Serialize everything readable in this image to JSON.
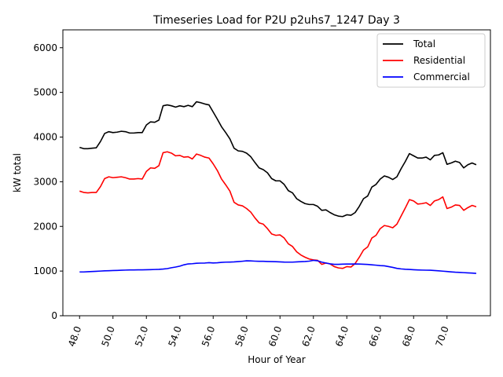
{
  "chart_data": {
    "type": "line",
    "title": "Timeseries Load for P2U p2uhs7_1247  Day 3",
    "xlabel": "Hour of Year",
    "ylabel": "kW total",
    "xlim": [
      47.0,
      72.6
    ],
    "ylim": [
      0,
      6400
    ],
    "x_ticks": [
      48,
      50,
      52,
      54,
      56,
      58,
      60,
      62,
      64,
      66,
      68,
      70
    ],
    "x_tick_labels": [
      "48.0",
      "50.0",
      "52.0",
      "54.0",
      "56.0",
      "58.0",
      "60.0",
      "62.0",
      "64.0",
      "66.0",
      "68.0",
      "70.0"
    ],
    "y_ticks": [
      0,
      1000,
      2000,
      3000,
      4000,
      5000,
      6000
    ],
    "y_tick_labels": [
      "0",
      "1000",
      "2000",
      "3000",
      "4000",
      "5000",
      "6000"
    ],
    "legend_position": "top-right",
    "series": [
      {
        "name": "Total",
        "color": "#000000",
        "x": [
          48.0,
          48.25,
          48.5,
          48.75,
          49.0,
          49.25,
          49.5,
          49.75,
          50.0,
          50.25,
          50.5,
          50.75,
          51.0,
          51.25,
          51.5,
          51.75,
          52.0,
          52.25,
          52.5,
          52.75,
          53.0,
          53.25,
          53.5,
          53.75,
          54.0,
          54.25,
          54.5,
          54.75,
          55.0,
          55.25,
          55.5,
          55.75,
          56.0,
          56.25,
          56.5,
          56.75,
          57.0,
          57.25,
          57.5,
          57.75,
          58.0,
          58.25,
          58.5,
          58.75,
          59.0,
          59.25,
          59.5,
          59.75,
          60.0,
          60.25,
          60.5,
          60.75,
          61.0,
          61.25,
          61.5,
          61.75,
          62.0,
          62.25,
          62.5,
          62.75,
          63.0,
          63.25,
          63.5,
          63.75,
          64.0,
          64.25,
          64.5,
          64.75,
          65.0,
          65.25,
          65.5,
          65.75,
          66.0,
          66.25,
          66.5,
          66.75,
          67.0,
          67.25,
          67.5,
          67.75,
          68.0,
          68.25,
          68.5,
          68.75,
          69.0,
          69.25,
          69.5,
          69.75,
          70.0,
          70.25,
          70.5,
          70.75,
          71.0,
          71.25,
          71.5,
          71.75
        ],
        "values": [
          3770,
          3740,
          3740,
          3750,
          3760,
          3900,
          4080,
          4120,
          4100,
          4110,
          4130,
          4120,
          4090,
          4090,
          4100,
          4100,
          4270,
          4340,
          4330,
          4380,
          4700,
          4720,
          4700,
          4670,
          4700,
          4680,
          4710,
          4680,
          4790,
          4770,
          4740,
          4720,
          4560,
          4400,
          4230,
          4100,
          3960,
          3750,
          3690,
          3680,
          3640,
          3560,
          3430,
          3310,
          3270,
          3200,
          3070,
          3020,
          3020,
          2940,
          2800,
          2750,
          2620,
          2560,
          2510,
          2490,
          2490,
          2450,
          2360,
          2370,
          2310,
          2260,
          2230,
          2220,
          2260,
          2250,
          2310,
          2450,
          2620,
          2680,
          2880,
          2940,
          3060,
          3130,
          3100,
          3050,
          3110,
          3290,
          3450,
          3630,
          3580,
          3530,
          3530,
          3550,
          3490,
          3590,
          3600,
          3650,
          3390,
          3420,
          3460,
          3430,
          3310,
          3380,
          3420,
          3380
        ]
      },
      {
        "name": "Residential",
        "color": "#ff0000",
        "x": [
          48.0,
          48.25,
          48.5,
          48.75,
          49.0,
          49.25,
          49.5,
          49.75,
          50.0,
          50.25,
          50.5,
          50.75,
          51.0,
          51.25,
          51.5,
          51.75,
          52.0,
          52.25,
          52.5,
          52.75,
          53.0,
          53.25,
          53.5,
          53.75,
          54.0,
          54.25,
          54.5,
          54.75,
          55.0,
          55.25,
          55.5,
          55.75,
          56.0,
          56.25,
          56.5,
          56.75,
          57.0,
          57.25,
          57.5,
          57.75,
          58.0,
          58.25,
          58.5,
          58.75,
          59.0,
          59.25,
          59.5,
          59.75,
          60.0,
          60.25,
          60.5,
          60.75,
          61.0,
          61.25,
          61.5,
          61.75,
          62.0,
          62.25,
          62.5,
          62.75,
          63.0,
          63.25,
          63.5,
          63.75,
          64.0,
          64.25,
          64.5,
          64.75,
          65.0,
          65.25,
          65.5,
          65.75,
          66.0,
          66.25,
          66.5,
          66.75,
          67.0,
          67.25,
          67.5,
          67.75,
          68.0,
          68.25,
          68.5,
          68.75,
          69.0,
          69.25,
          69.5,
          69.75,
          70.0,
          70.25,
          70.5,
          70.75,
          71.0,
          71.25,
          71.5,
          71.75
        ],
        "values": [
          2790,
          2760,
          2750,
          2760,
          2760,
          2890,
          3070,
          3110,
          3090,
          3100,
          3110,
          3090,
          3060,
          3060,
          3070,
          3060,
          3230,
          3310,
          3300,
          3360,
          3650,
          3670,
          3640,
          3580,
          3590,
          3550,
          3560,
          3510,
          3620,
          3590,
          3550,
          3530,
          3400,
          3250,
          3060,
          2930,
          2790,
          2540,
          2480,
          2460,
          2400,
          2320,
          2190,
          2080,
          2050,
          1950,
          1830,
          1800,
          1810,
          1740,
          1610,
          1550,
          1430,
          1360,
          1310,
          1270,
          1250,
          1240,
          1150,
          1180,
          1160,
          1100,
          1070,
          1060,
          1100,
          1090,
          1170,
          1310,
          1470,
          1540,
          1740,
          1800,
          1950,
          2020,
          2000,
          1970,
          2050,
          2230,
          2410,
          2600,
          2570,
          2500,
          2510,
          2530,
          2470,
          2570,
          2600,
          2660,
          2400,
          2430,
          2480,
          2470,
          2360,
          2420,
          2470,
          2440
        ]
      },
      {
        "name": "Commercial",
        "color": "#0000ff",
        "x": [
          48.0,
          48.25,
          48.5,
          48.75,
          49.0,
          49.25,
          49.5,
          49.75,
          50.0,
          50.25,
          50.5,
          50.75,
          51.0,
          51.25,
          51.5,
          51.75,
          52.0,
          52.25,
          52.5,
          52.75,
          53.0,
          53.25,
          53.5,
          53.75,
          54.0,
          54.25,
          54.5,
          54.75,
          55.0,
          55.25,
          55.5,
          55.75,
          56.0,
          56.25,
          56.5,
          56.75,
          57.0,
          57.25,
          57.5,
          57.75,
          58.0,
          58.25,
          58.5,
          58.75,
          59.0,
          59.25,
          59.5,
          59.75,
          60.0,
          60.25,
          60.5,
          60.75,
          61.0,
          61.25,
          61.5,
          61.75,
          62.0,
          62.25,
          62.5,
          62.75,
          63.0,
          63.25,
          63.5,
          63.75,
          64.0,
          64.25,
          64.5,
          64.75,
          65.0,
          65.25,
          65.5,
          65.75,
          66.0,
          66.25,
          66.5,
          66.75,
          67.0,
          67.25,
          67.5,
          67.75,
          68.0,
          68.25,
          68.5,
          68.75,
          69.0,
          69.25,
          69.5,
          69.75,
          70.0,
          70.25,
          70.5,
          70.75,
          71.0,
          71.25,
          71.5,
          71.75
        ],
        "values": [
          980,
          980,
          985,
          990,
          995,
          1000,
          1005,
          1008,
          1012,
          1015,
          1018,
          1022,
          1025,
          1025,
          1027,
          1028,
          1030,
          1032,
          1035,
          1038,
          1045,
          1055,
          1075,
          1090,
          1110,
          1140,
          1160,
          1165,
          1175,
          1178,
          1180,
          1188,
          1182,
          1185,
          1195,
          1200,
          1202,
          1205,
          1212,
          1220,
          1230,
          1228,
          1222,
          1218,
          1218,
          1214,
          1212,
          1210,
          1206,
          1202,
          1200,
          1200,
          1205,
          1210,
          1215,
          1222,
          1240,
          1230,
          1200,
          1180,
          1162,
          1150,
          1150,
          1155,
          1158,
          1158,
          1160,
          1158,
          1152,
          1148,
          1140,
          1132,
          1122,
          1118,
          1100,
          1082,
          1060,
          1048,
          1040,
          1036,
          1030,
          1026,
          1022,
          1020,
          1018,
          1012,
          1005,
          998,
          990,
          982,
          975,
          970,
          965,
          960,
          955,
          948
        ]
      }
    ]
  }
}
